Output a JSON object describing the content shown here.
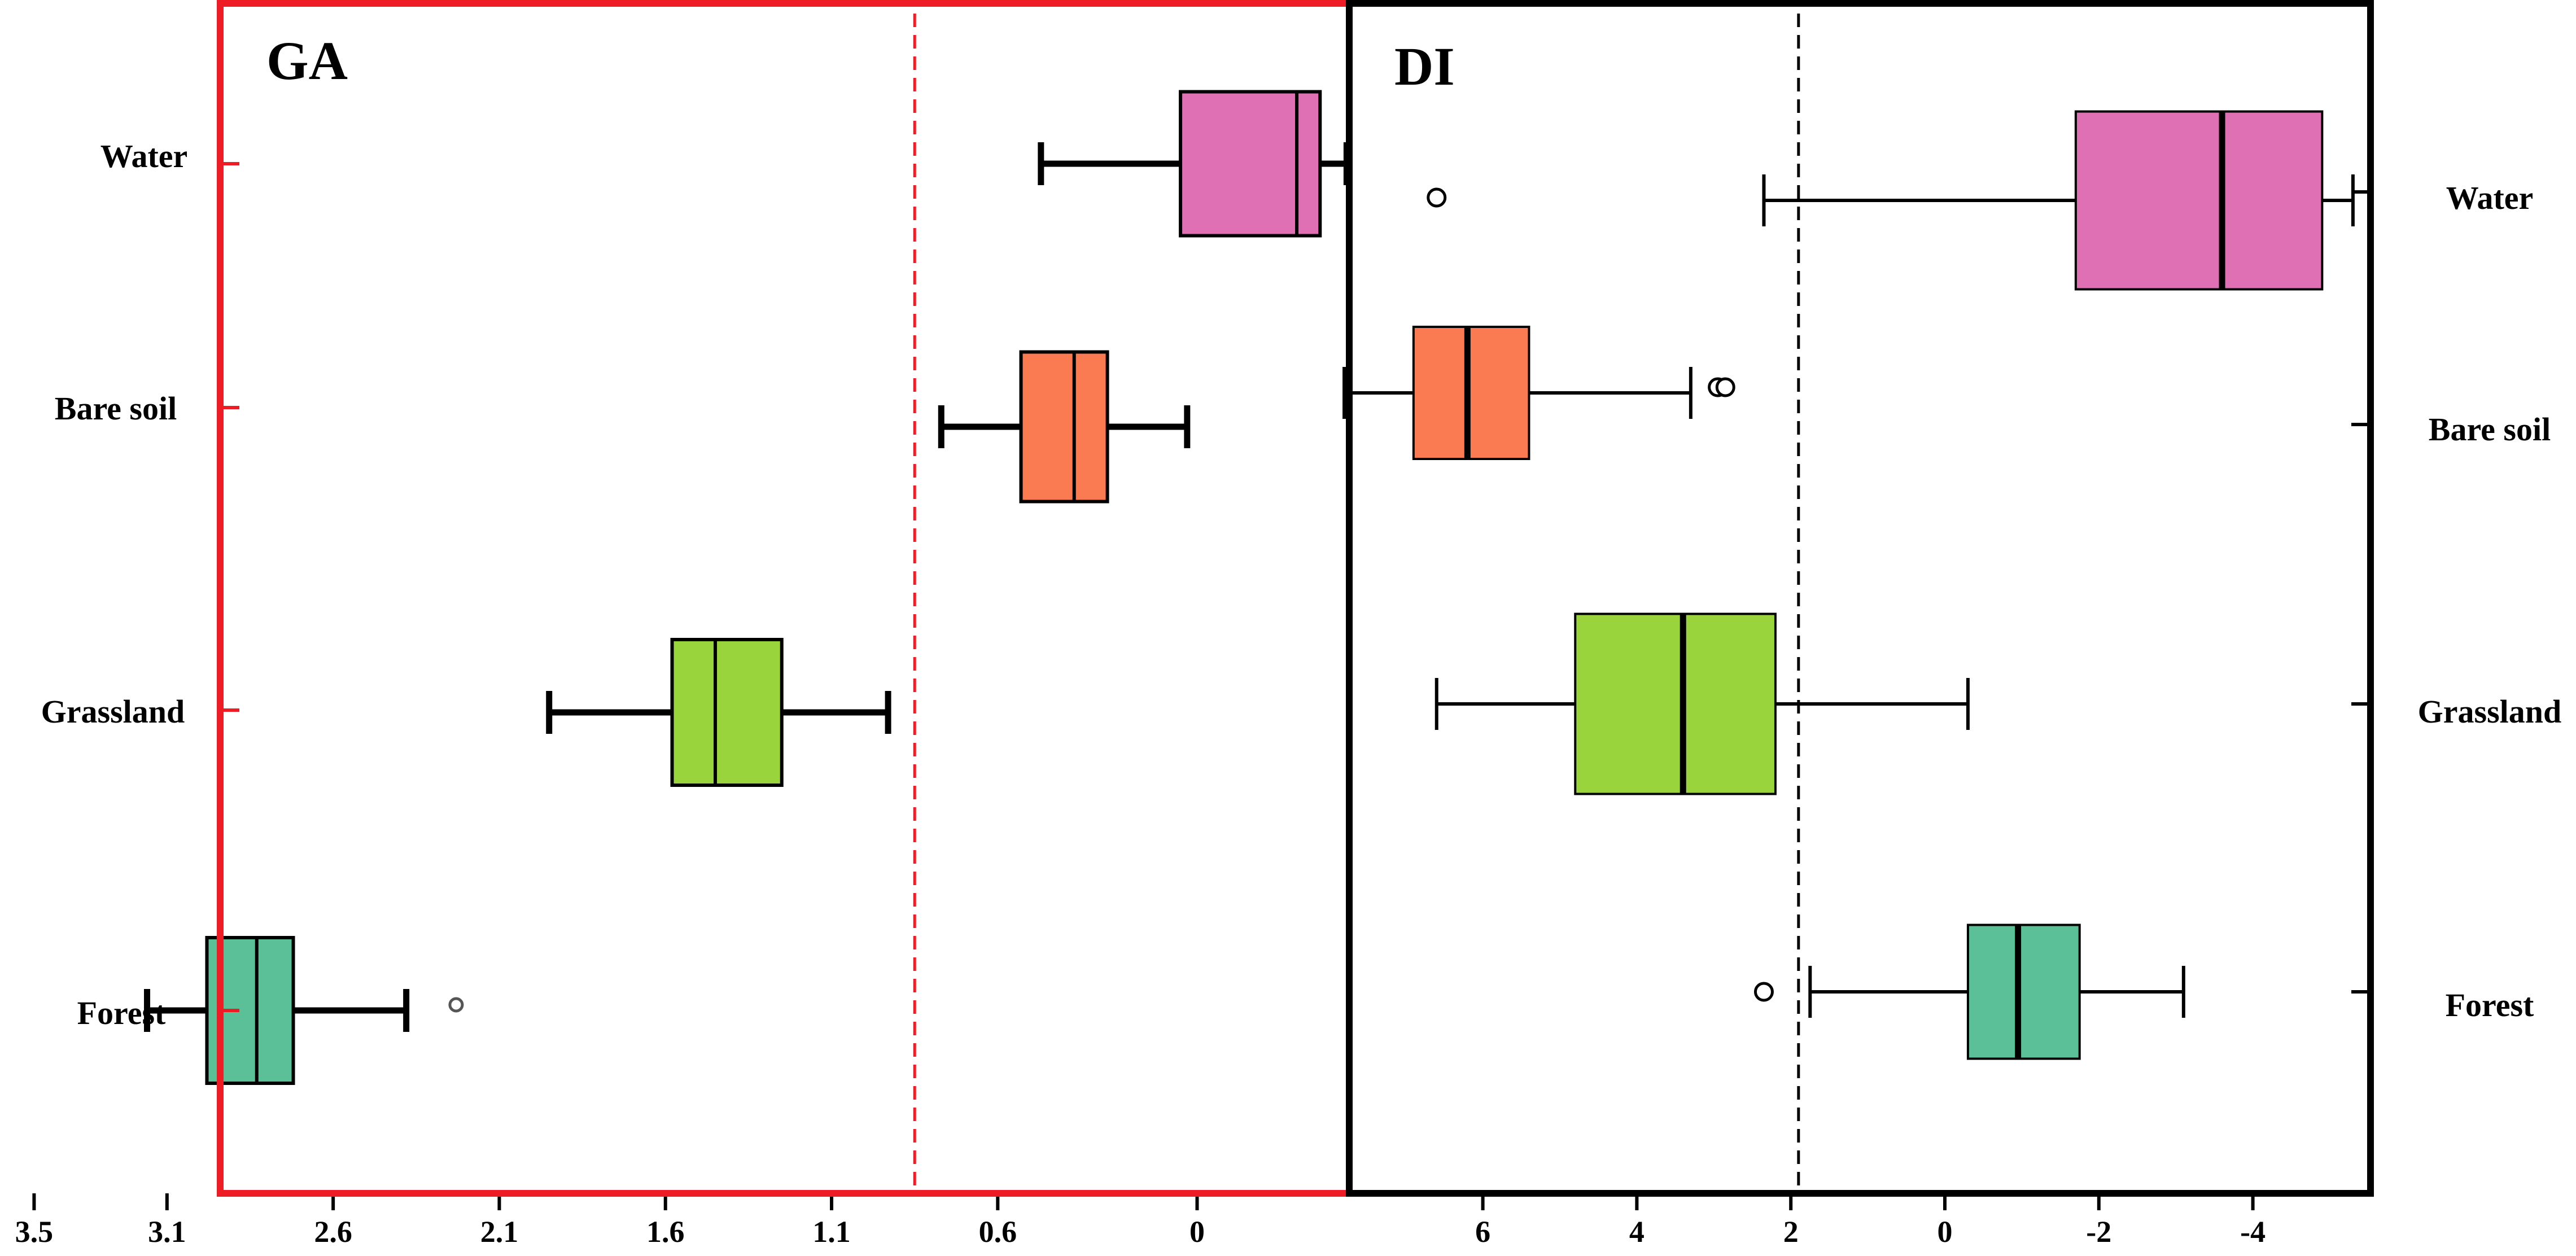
{
  "chart_data": [
    {
      "type": "boxplot",
      "orientation": "horizontal",
      "title": "GA",
      "categories": [
        "Water",
        "Bare soil",
        "Grassland",
        "Forest"
      ],
      "xaxis_reversed": true,
      "xlim": [
        -0.65,
        3.5
      ],
      "xticks": [
        3.5,
        3.1,
        2.6,
        2.1,
        1.6,
        1.1,
        0.6,
        0
      ],
      "xtick_labels": [
        "3.5",
        "3.1",
        "2.6",
        "2.1",
        "1.6",
        "1.1",
        "0.6",
        "0"
      ],
      "reference_line": 0.85,
      "frame_color": "#ee1c25",
      "reference_line_color": "#ee1c25",
      "boxes": [
        {
          "category": "Water",
          "whisker_low": -0.45,
          "q1": -0.37,
          "median": -0.3,
          "q3": 0.05,
          "whisker_high": 0.47,
          "outliers": [],
          "color": "#e070b4"
        },
        {
          "category": "Bare soil",
          "whisker_low": 0.03,
          "q1": 0.27,
          "median": 0.37,
          "q3": 0.53,
          "whisker_high": 0.77,
          "outliers": [],
          "color": "#fa7a52"
        },
        {
          "category": "Grassland",
          "whisker_low": 0.93,
          "q1": 1.25,
          "median": 1.45,
          "q3": 1.58,
          "whisker_high": 1.95,
          "outliers": [],
          "color": "#9ad43c"
        },
        {
          "category": "Forest",
          "whisker_low": 2.38,
          "q1": 2.72,
          "median": 2.83,
          "q3": 2.98,
          "whisker_high": 3.16,
          "outliers": [
            2.23
          ],
          "color": "#5bbf98"
        }
      ]
    },
    {
      "type": "boxplot",
      "orientation": "horizontal",
      "title": "DI",
      "categories": [
        "Water",
        "Bare soil",
        "Grassland",
        "Forest"
      ],
      "xaxis_reversed": true,
      "xlim": [
        -5.6,
        8.1
      ],
      "xticks": [
        6,
        4,
        2,
        0,
        -2,
        -4
      ],
      "xtick_labels": [
        "6",
        "4",
        "2",
        "0",
        "-2",
        "-4"
      ],
      "reference_line": 1.9,
      "frame_color": "#000000",
      "reference_line_color": "#000000",
      "boxes": [
        {
          "category": "Water",
          "whisker_low": -5.3,
          "q1": -4.9,
          "median": -3.6,
          "q3": -1.7,
          "whisker_high": 2.35,
          "outliers": [
            6.6
          ],
          "color": "#e070b4"
        },
        {
          "category": "Bare soil",
          "whisker_low": 3.3,
          "q1": 5.4,
          "median": 6.2,
          "q3": 6.9,
          "whisker_high": 7.8,
          "outliers": [
            2.95,
            2.85
          ],
          "color": "#fa7a52"
        },
        {
          "category": "Grassland",
          "whisker_low": -0.3,
          "q1": 2.2,
          "median": 3.4,
          "q3": 4.8,
          "whisker_high": 6.6,
          "outliers": [],
          "color": "#9ad43c"
        },
        {
          "category": "Forest",
          "whisker_low": -3.1,
          "q1": -1.75,
          "median": -0.95,
          "q3": -0.3,
          "whisker_high": 1.75,
          "outliers": [
            2.35
          ],
          "color": "#5bbf98"
        }
      ]
    }
  ]
}
